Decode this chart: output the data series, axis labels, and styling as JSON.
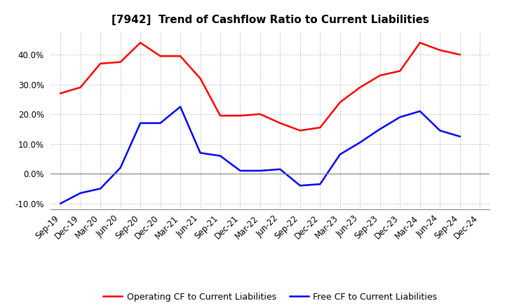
{
  "title": "[7942]  Trend of Cashflow Ratio to Current Liabilities",
  "x_labels": [
    "Sep-19",
    "Dec-19",
    "Mar-20",
    "Jun-20",
    "Sep-20",
    "Dec-20",
    "Mar-21",
    "Jun-21",
    "Sep-21",
    "Dec-21",
    "Mar-22",
    "Jun-22",
    "Sep-22",
    "Dec-22",
    "Mar-23",
    "Jun-23",
    "Sep-23",
    "Dec-23",
    "Mar-24",
    "Jun-24",
    "Sep-24",
    "Dec-24"
  ],
  "operating_cf": [
    0.27,
    0.29,
    0.37,
    0.375,
    0.44,
    0.395,
    0.395,
    0.32,
    0.195,
    0.195,
    0.2,
    0.17,
    0.145,
    0.155,
    0.24,
    0.29,
    0.33,
    0.345,
    0.44,
    0.415,
    0.4,
    null
  ],
  "free_cf": [
    -0.1,
    -0.065,
    -0.05,
    0.02,
    0.17,
    0.17,
    0.225,
    0.07,
    0.06,
    0.01,
    0.01,
    0.015,
    -0.04,
    -0.035,
    0.065,
    0.105,
    0.15,
    0.19,
    0.21,
    0.145,
    0.125,
    null
  ],
  "operating_color": "#FF0000",
  "free_color": "#0000FF",
  "background_color": "#FFFFFF",
  "grid_color": "#AAAAAA",
  "ylim": [
    -0.12,
    0.48
  ],
  "yticks": [
    -0.1,
    0.0,
    0.1,
    0.2,
    0.3,
    0.4
  ],
  "legend_operating": "Operating CF to Current Liabilities",
  "legend_free": "Free CF to Current Liabilities",
  "title_fontsize": 11,
  "tick_fontsize": 8.5,
  "legend_fontsize": 9
}
